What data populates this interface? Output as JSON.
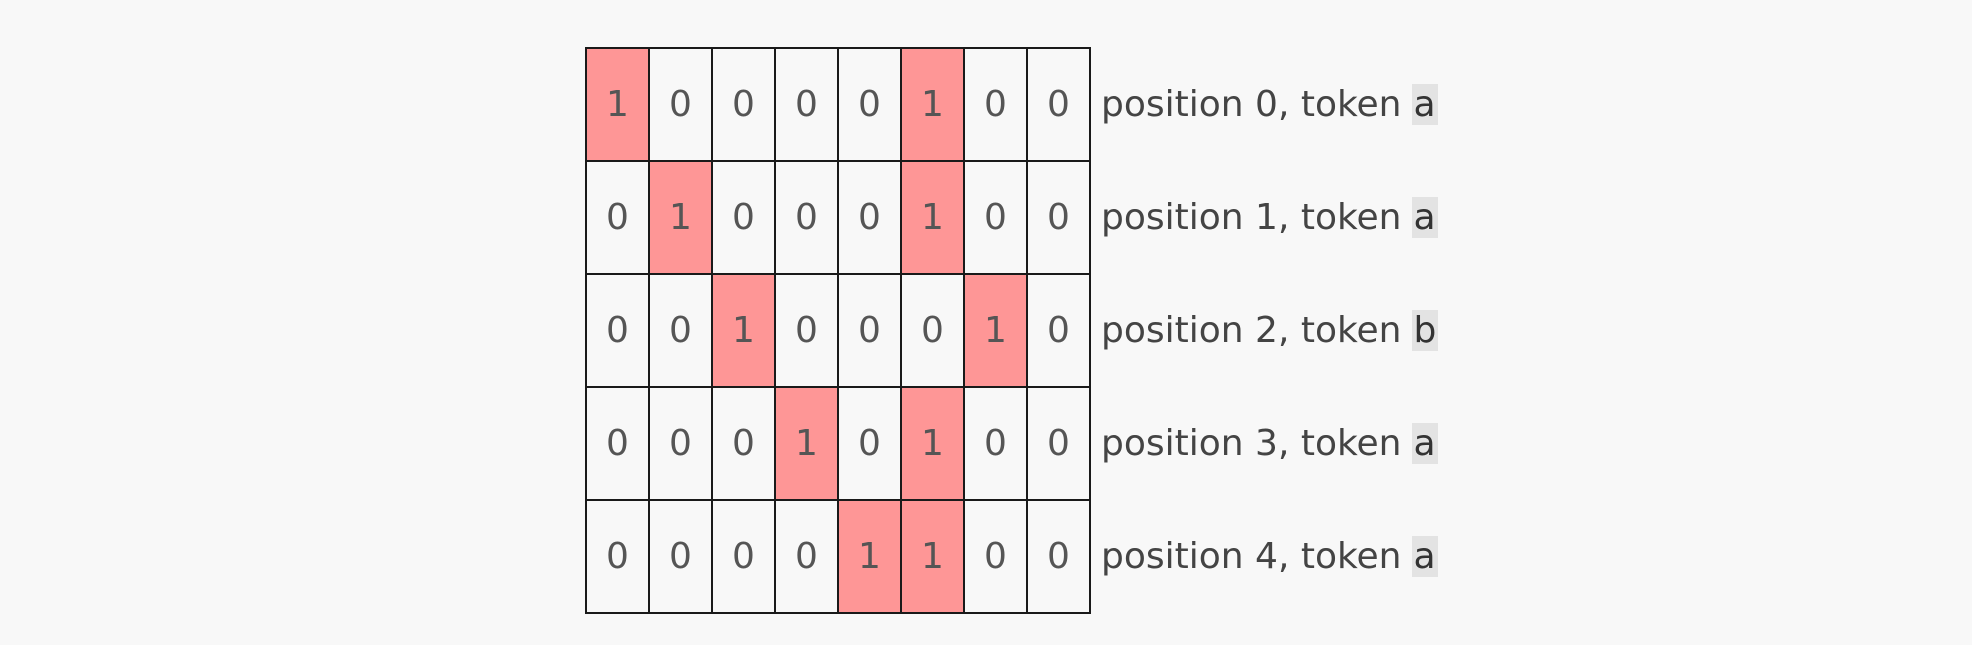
{
  "rows": [
    {
      "cells": [
        "1",
        "0",
        "0",
        "0",
        "0",
        "1",
        "0",
        "0"
      ],
      "hot": [
        true,
        false,
        false,
        false,
        false,
        true,
        false,
        false
      ],
      "label": "position 0, token",
      "token": "a"
    },
    {
      "cells": [
        "0",
        "1",
        "0",
        "0",
        "0",
        "1",
        "0",
        "0"
      ],
      "hot": [
        false,
        true,
        false,
        false,
        false,
        true,
        false,
        false
      ],
      "label": "position 1, token",
      "token": "a"
    },
    {
      "cells": [
        "0",
        "0",
        "1",
        "0",
        "0",
        "0",
        "1",
        "0"
      ],
      "hot": [
        false,
        false,
        true,
        false,
        false,
        false,
        true,
        false
      ],
      "label": "position 2, token",
      "token": "b"
    },
    {
      "cells": [
        "0",
        "0",
        "0",
        "1",
        "0",
        "1",
        "0",
        "0"
      ],
      "hot": [
        false,
        false,
        false,
        true,
        false,
        true,
        false,
        false
      ],
      "label": "position 3, token",
      "token": "a"
    },
    {
      "cells": [
        "0",
        "0",
        "0",
        "0",
        "1",
        "1",
        "0",
        "0"
      ],
      "hot": [
        false,
        false,
        false,
        false,
        true,
        true,
        false,
        false
      ],
      "label": "position 4, token",
      "token": "a"
    }
  ],
  "colors": {
    "hot_fill": "#fe9696",
    "token_highlight": "#e3e3e3",
    "background": "#f8f8f8"
  }
}
